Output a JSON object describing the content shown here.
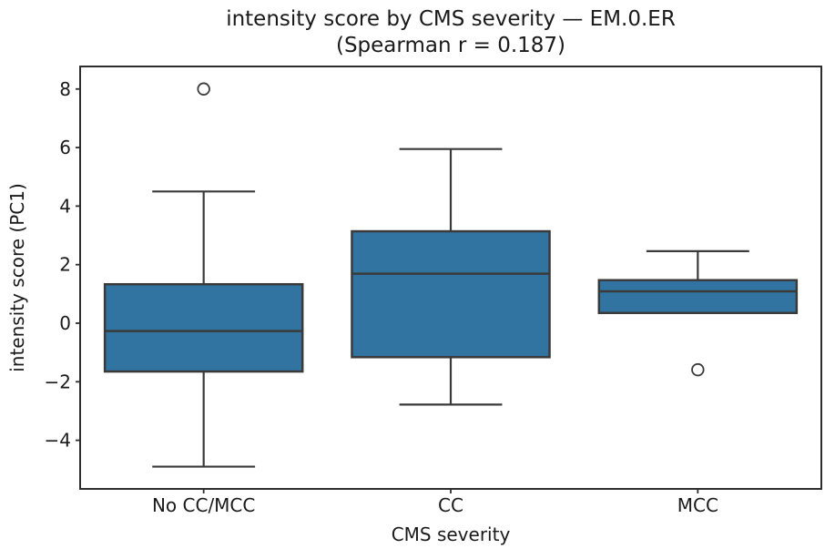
{
  "figure": {
    "background": "#ffffff"
  },
  "chart_data": {
    "type": "box",
    "title": "intensity score by CMS severity — EM.0.ER",
    "subtitle": "(Spearman r = 0.187)",
    "xlabel": "CMS severity",
    "ylabel": "intensity score (PC1)",
    "categories": [
      "No CC/MCC",
      "CC",
      "MCC"
    ],
    "yticks": [
      -4,
      -2,
      0,
      2,
      4,
      6,
      8
    ],
    "ylim": [
      -5.66,
      8.77
    ],
    "grid": false,
    "legend": "none",
    "box_width_frac": 0.8,
    "cap_width_frac": 0.52,
    "boxes": [
      {
        "label": "No CC/MCC",
        "whislo": -4.9,
        "q1": -1.65,
        "med": -0.27,
        "q3": 1.33,
        "whishi": 4.5,
        "fliers": [
          8.0
        ]
      },
      {
        "label": "CC",
        "whislo": -2.78,
        "q1": -1.16,
        "med": 1.69,
        "q3": 3.14,
        "whishi": 5.95,
        "fliers": []
      },
      {
        "label": "MCC",
        "whislo": 0.35,
        "q1": 0.35,
        "med": 1.09,
        "q3": 1.47,
        "whishi": 2.46,
        "fliers": [
          -1.59
        ]
      }
    ],
    "colors": {
      "box_fill": "#3274a1",
      "line": "#3a3a3a",
      "frame": "#2e2e2e",
      "text": "#1a1a1a"
    }
  }
}
